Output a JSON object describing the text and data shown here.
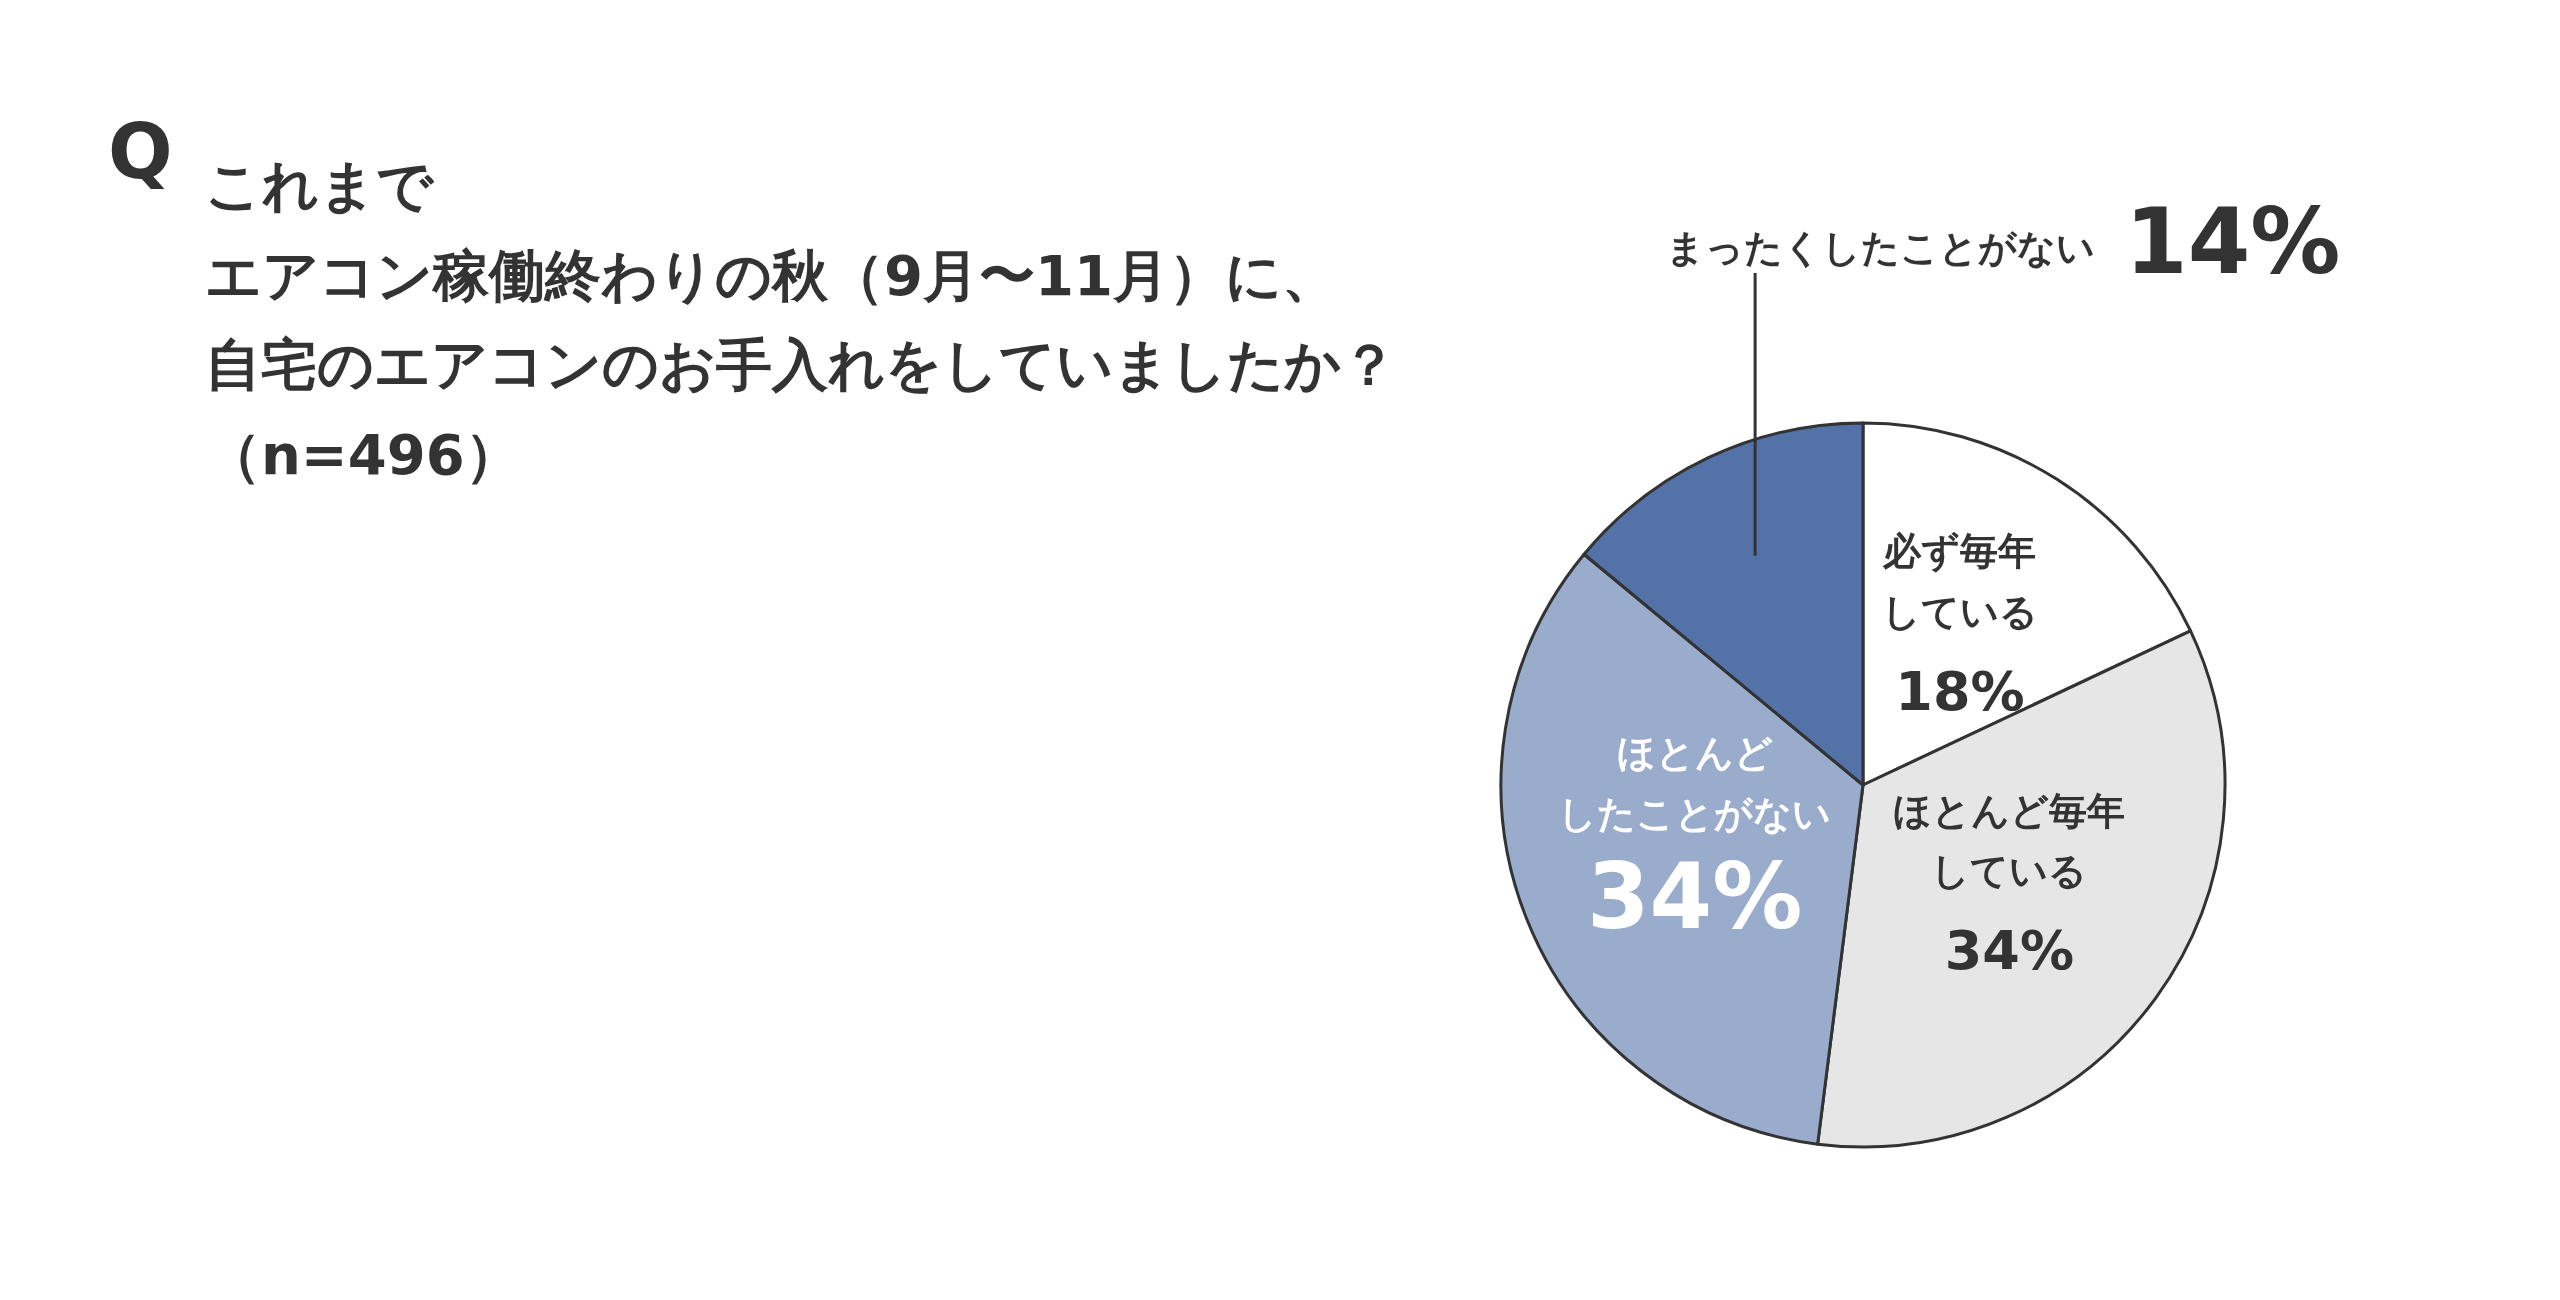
{
  "chart_data": {
    "type": "pie",
    "title": "Q",
    "subtitle": "これまでエアコン稼働終わりの秋（9月〜11月）に、自宅のエアコンのお手入れをしていましたか？（n=496）",
    "categories": [
      "必ず毎年している",
      "ほとんど毎年している",
      "ほとんどしたことがない",
      "まったくしたことがない"
    ],
    "value_labels": [
      "18%",
      "34%",
      "34%",
      "14%"
    ],
    "values": [
      18,
      34,
      34,
      14
    ],
    "colors": [
      "#ffffff",
      "#e6e6e6",
      "#9aaccc",
      "#5272a8"
    ]
  }
}
